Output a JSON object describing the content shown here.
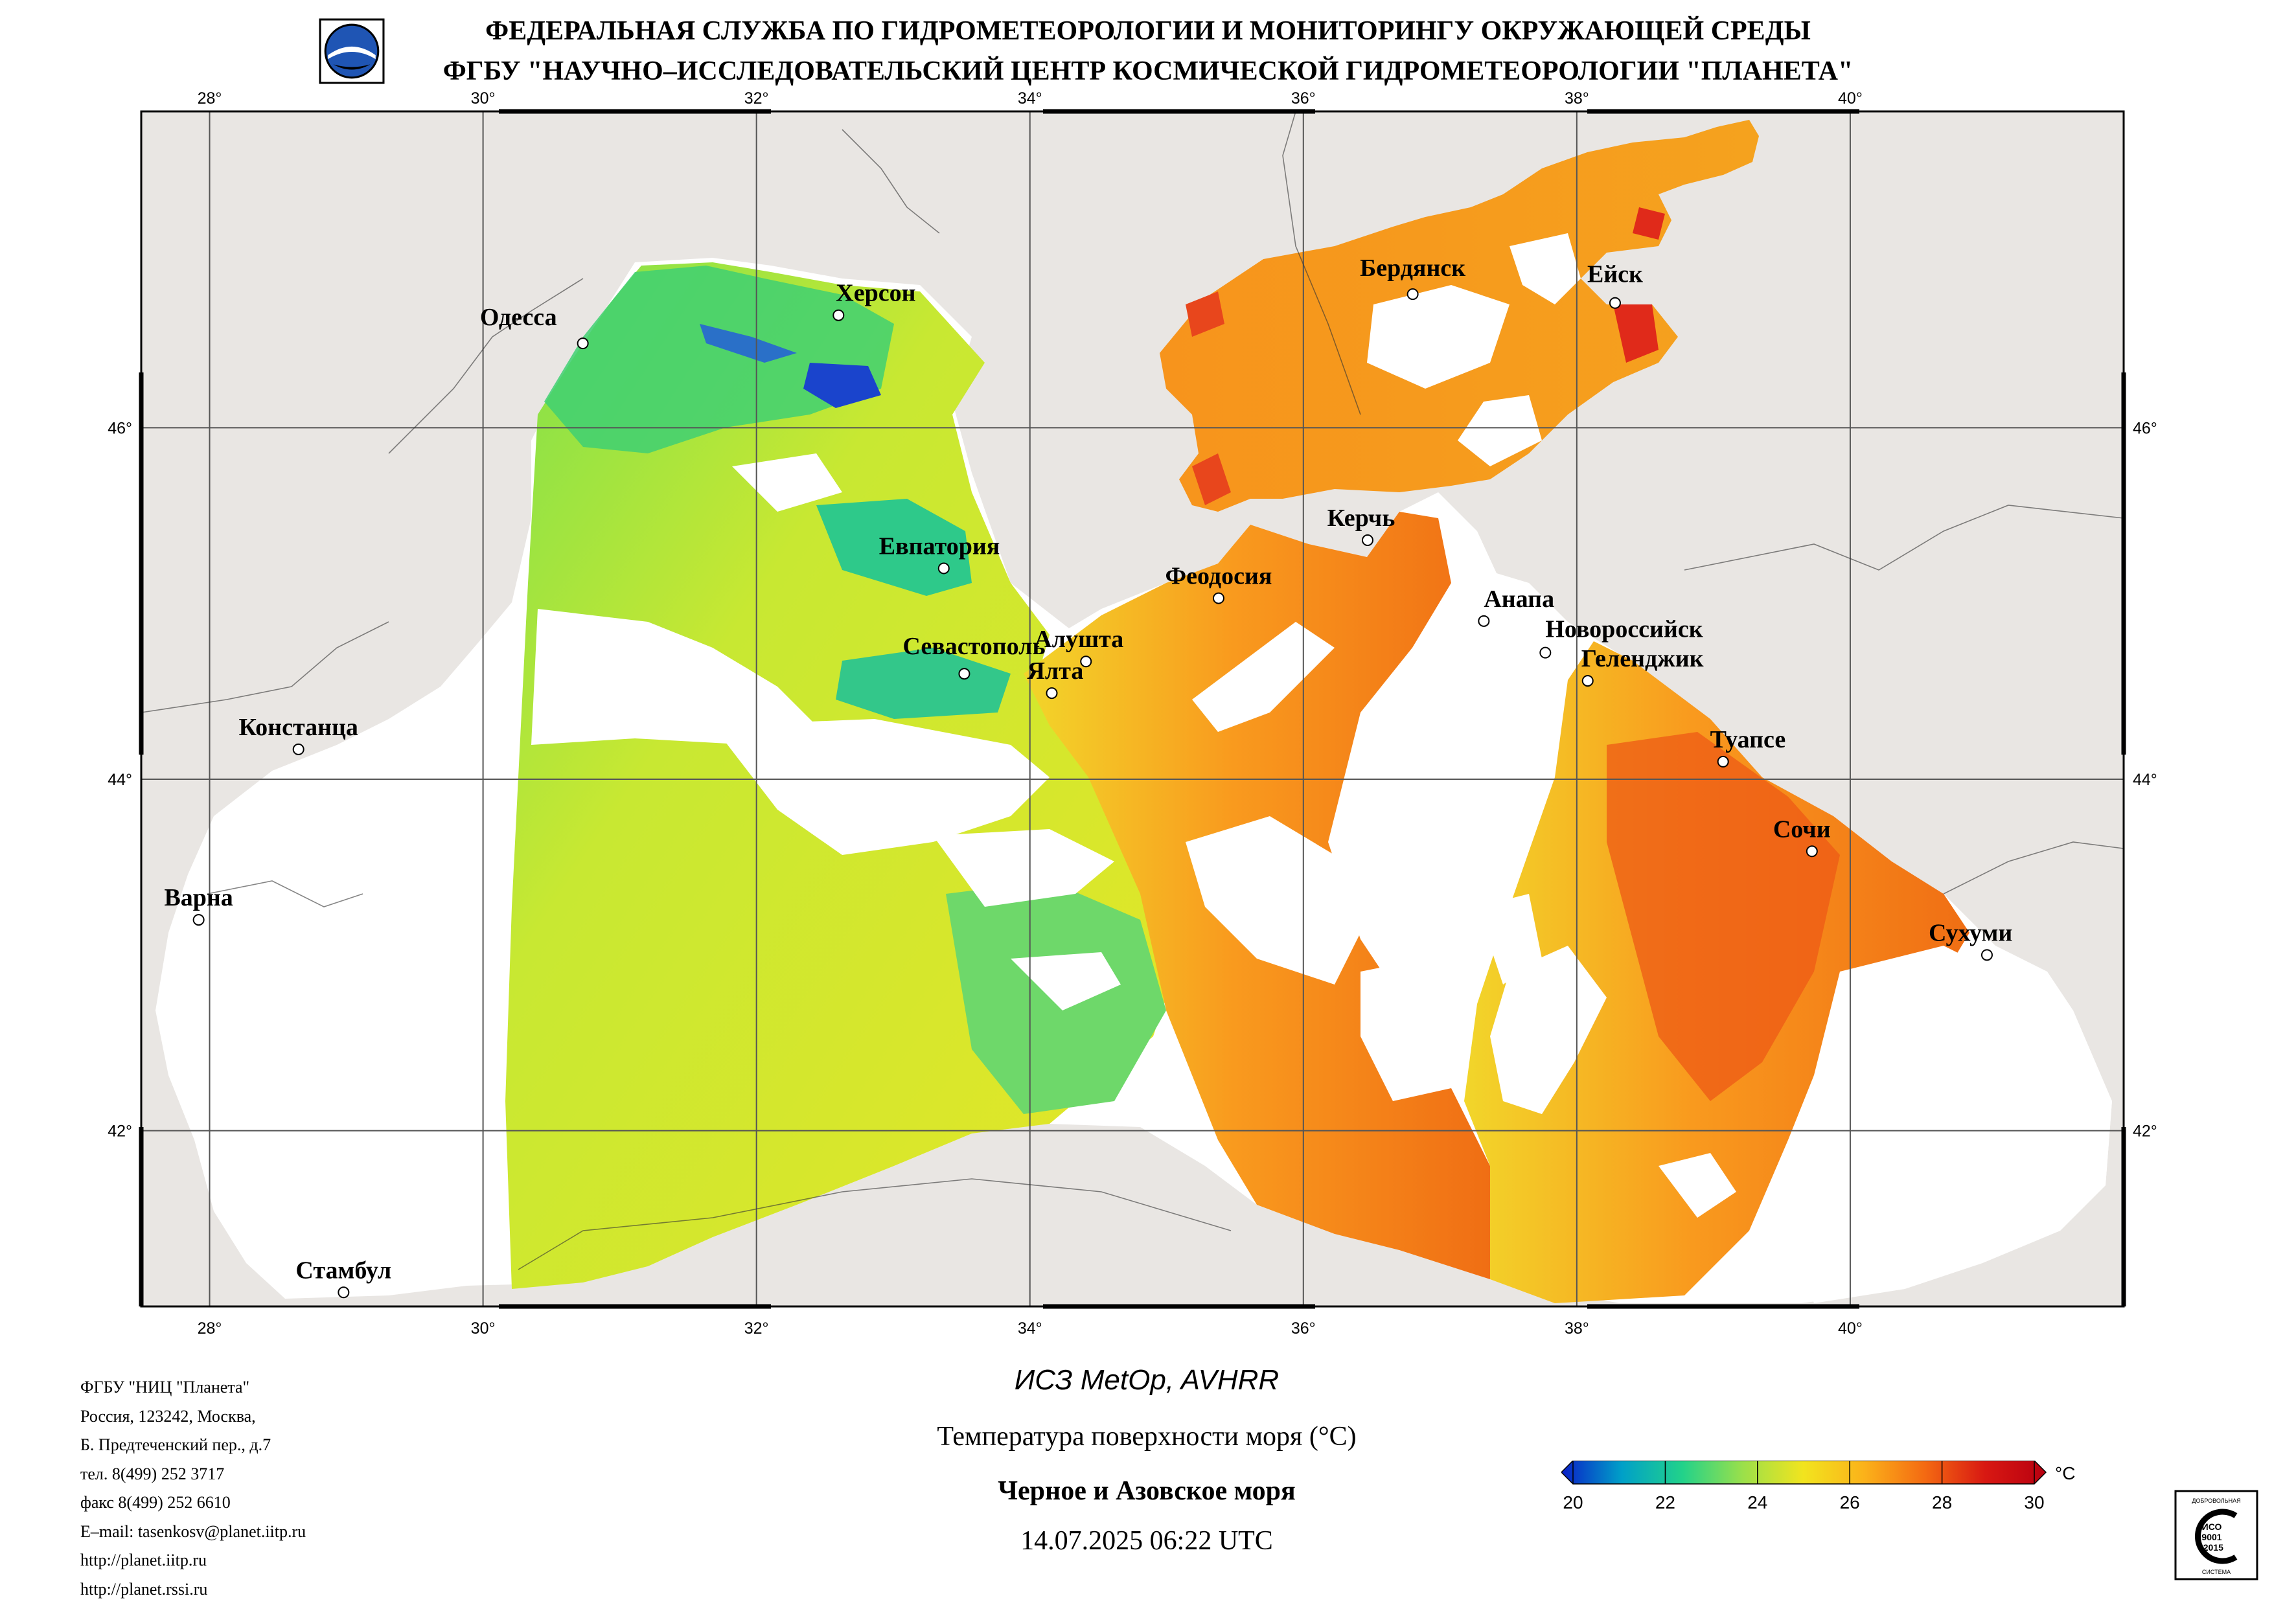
{
  "header": {
    "line1": "ФЕДЕРАЛЬНАЯ СЛУЖБА ПО ГИДРОМЕТЕОРОЛОГИИ И МОНИТОРИНГУ ОКРУЖАЮЩЕЙ СРЕДЫ",
    "line2": "ФГБУ \"НАУЧНО–ИССЛЕДОВАТЕЛЬСКИЙ ЦЕНТР КОСМИЧЕСКОЙ ГИДРОМЕТЕОРОЛОГИИ \"ПЛАНЕТА\""
  },
  "map": {
    "lon_range": [
      27.5,
      42.0
    ],
    "lat_range": [
      41.0,
      47.8
    ],
    "lon_ticks": [
      "28°",
      "30°",
      "32°",
      "34°",
      "36°",
      "38°",
      "40°"
    ],
    "lat_ticks": [
      "42°",
      "44°",
      "46°"
    ],
    "grid": true,
    "colors": {
      "land": "#e9e6e3",
      "cloud_or_nodata": "#ffffff",
      "grid": "#555555",
      "border": "#000000"
    },
    "cities": [
      {
        "name": "Одесса",
        "lon": 30.73,
        "lat": 46.48
      },
      {
        "name": "Херсон",
        "lon": 32.6,
        "lat": 46.64
      },
      {
        "name": "Бердянск",
        "lon": 36.8,
        "lat": 46.76
      },
      {
        "name": "Ейск",
        "lon": 38.28,
        "lat": 46.71
      },
      {
        "name": "Евпатория",
        "lon": 33.37,
        "lat": 45.2
      },
      {
        "name": "Керчь",
        "lon": 36.47,
        "lat": 45.36
      },
      {
        "name": "Феодосия",
        "lon": 35.38,
        "lat": 45.03
      },
      {
        "name": "Анапа",
        "lon": 37.32,
        "lat": 44.9
      },
      {
        "name": "Новороссийск",
        "lon": 37.77,
        "lat": 44.72
      },
      {
        "name": "Геленджик",
        "lon": 38.08,
        "lat": 44.56
      },
      {
        "name": "Алушта",
        "lon": 34.41,
        "lat": 44.67
      },
      {
        "name": "Севастополь",
        "lon": 33.52,
        "lat": 44.6
      },
      {
        "name": "Ялта",
        "lon": 34.16,
        "lat": 44.49
      },
      {
        "name": "Констанца",
        "lon": 28.65,
        "lat": 44.17
      },
      {
        "name": "Туапсе",
        "lon": 39.07,
        "lat": 44.1
      },
      {
        "name": "Сочи",
        "lon": 39.72,
        "lat": 43.59
      },
      {
        "name": "Варна",
        "lon": 27.92,
        "lat": 43.2
      },
      {
        "name": "Сухуми",
        "lon": 41.0,
        "lat": 43.0
      },
      {
        "name": "Стамбул",
        "lon": 28.98,
        "lat": 41.08
      }
    ]
  },
  "footer": {
    "address_lines": [
      "ФГБУ \"НИЦ \"Планета\"",
      "Россия, 123242, Москва,",
      "Б. Предтеченский пер., д.7",
      "тел. 8(499) 252 3717",
      "факс 8(499) 252 6610",
      "E–mail: tasenkosv@planet.iitp.ru",
      "http://planet.iitp.ru",
      "http://planet.rssi.ru"
    ],
    "satellite": "ИСЗ MetOp, AVHRR",
    "parameter": "Температура поверхности моря (°C)",
    "region": "Черное и Азовское моря",
    "datetime": "14.07.2025 06:22 UTC"
  },
  "legend": {
    "unit": "°C",
    "ticks": [
      "20",
      "22",
      "24",
      "26",
      "28",
      "30"
    ],
    "min": 20,
    "max": 30,
    "colors": [
      "#0a1fc8",
      "#00a0c8",
      "#22d28a",
      "#9be04a",
      "#f2e41e",
      "#fbb21a",
      "#f46a12",
      "#d81812",
      "#b80010"
    ]
  },
  "iso_badge": {
    "top_text": "ДОБРОВОЛЬНАЯ",
    "line1": "ИСО",
    "line2": "9001",
    "line3": "-2015",
    "bottom_text": "СИСТЕМА"
  }
}
